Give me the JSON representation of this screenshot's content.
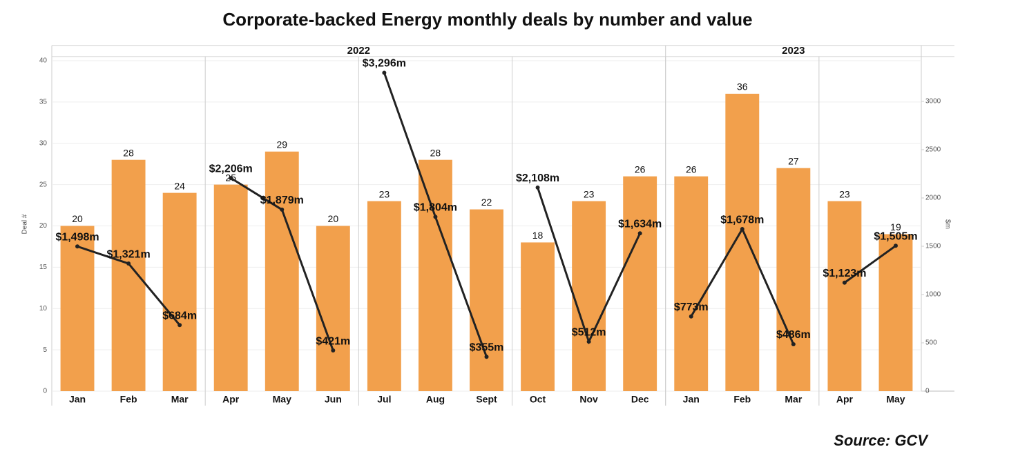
{
  "chart_data": {
    "type": "bar",
    "title": "Corporate-backed Energy monthly deals by number and value",
    "y_label": "Deal #",
    "y2_label": "$m",
    "source": "Source: GCV",
    "category_groups": [
      {
        "label": "2022",
        "categories": [
          "Jan",
          "Feb",
          "Mar",
          "Apr",
          "May",
          "Jun",
          "Jul",
          "Aug",
          "Sept",
          "Oct",
          "Nov",
          "Dec"
        ]
      },
      {
        "label": "2023",
        "categories": [
          "Jan",
          "Feb",
          "Mar",
          "Apr",
          "May"
        ]
      }
    ],
    "series": [
      {
        "type": "bar",
        "color": "#f2a04c",
        "values": [
          20,
          28,
          24,
          25,
          29,
          20,
          23,
          28,
          22,
          18,
          23,
          26,
          26,
          36,
          27,
          23,
          19
        ]
      },
      {
        "type": "line",
        "axis": "y2",
        "color": "#222222",
        "values": [
          1498,
          1321,
          684,
          2206,
          1879,
          421,
          3296,
          1804,
          355,
          2108,
          512,
          1634,
          773,
          1678,
          486,
          1123,
          1505
        ],
        "value_labels": [
          "$1,498m",
          "$1,321m",
          "$684m",
          "$2,206m",
          "$1,879m",
          "$421m",
          "$3,296m",
          "$1,804m",
          "$355m",
          "$2,108m",
          "$512m",
          "$1,634m",
          "$773m",
          "$1,678m",
          "$486m",
          "$1,123m",
          "$1,505m"
        ]
      }
    ],
    "ylim": [
      0,
      40.5
    ],
    "yticks": [
      0,
      5,
      10,
      15,
      20,
      25,
      30,
      35,
      40
    ],
    "y2lim": [
      0,
      3464
    ],
    "y2ticks": [
      0,
      500,
      1000,
      1500,
      2000,
      2500,
      3000
    ],
    "grid": true
  }
}
